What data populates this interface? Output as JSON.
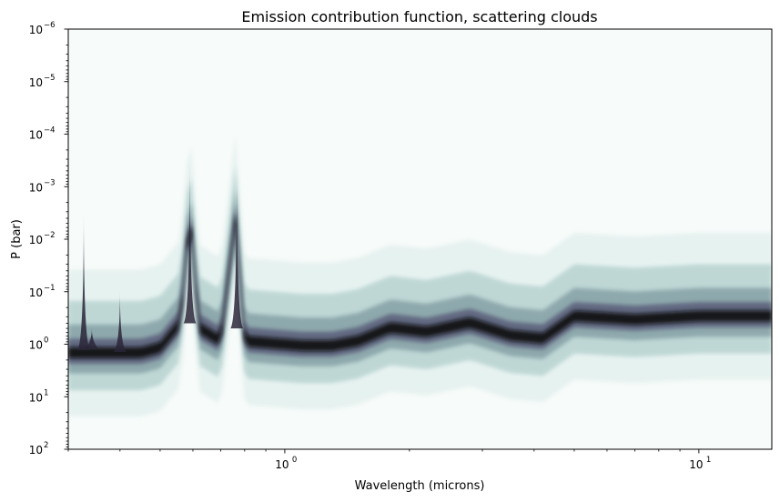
{
  "chart_data": {
    "type": "heatmap",
    "title": "Emission contribution function, scattering clouds",
    "xlabel": "Wavelength (microns)",
    "ylabel": "P (bar)",
    "xscale": "log",
    "yscale": "log",
    "yaxis_inverted": true,
    "xlim": [
      0.3,
      15
    ],
    "ylim": [
      100,
      1e-06
    ],
    "x_major_ticks": [
      {
        "value": 1,
        "base": "10",
        "exp": "0"
      },
      {
        "value": 10,
        "base": "10",
        "exp": "1"
      }
    ],
    "y_major_ticks": [
      {
        "value": 1e-06,
        "base": "10",
        "exp": "−6"
      },
      {
        "value": 1e-05,
        "base": "10",
        "exp": "−5"
      },
      {
        "value": 0.0001,
        "base": "10",
        "exp": "−4"
      },
      {
        "value": 0.001,
        "base": "10",
        "exp": "−3"
      },
      {
        "value": 0.01,
        "base": "10",
        "exp": "−2"
      },
      {
        "value": 0.1,
        "base": "10",
        "exp": "−1"
      },
      {
        "value": 1,
        "base": "10",
        "exp": "0"
      },
      {
        "value": 10,
        "base": "10",
        "exp": "1"
      },
      {
        "value": 100,
        "base": "10",
        "exp": "2"
      }
    ],
    "colormap": "bone_r",
    "colormap_colors": [
      "#f7fbfa",
      "#d9ebe8",
      "#a9cac6",
      "#7d9aa0",
      "#5a5e7a",
      "#2a2638",
      "#0a0a10"
    ],
    "peak_pressure_profile": [
      {
        "wavelength": 0.3,
        "pressure": 1.5
      },
      {
        "wavelength": 0.45,
        "pressure": 1.5
      },
      {
        "wavelength": 0.5,
        "pressure": 1.2
      },
      {
        "wavelength": 0.56,
        "pressure": 0.4
      },
      {
        "wavelength": 0.59,
        "pressure": 0.003
      },
      {
        "wavelength": 0.62,
        "pressure": 0.5
      },
      {
        "wavelength": 0.7,
        "pressure": 0.9
      },
      {
        "wavelength": 0.76,
        "pressure": 0.004
      },
      {
        "wavelength": 0.8,
        "pressure": 0.9
      },
      {
        "wavelength": 1.1,
        "pressure": 1.1
      },
      {
        "wavelength": 1.3,
        "pressure": 1.1
      },
      {
        "wavelength": 1.5,
        "pressure": 0.9
      },
      {
        "wavelength": 1.8,
        "pressure": 0.5
      },
      {
        "wavelength": 2.2,
        "pressure": 0.6
      },
      {
        "wavelength": 2.8,
        "pressure": 0.4
      },
      {
        "wavelength": 3.5,
        "pressure": 0.7
      },
      {
        "wavelength": 4.2,
        "pressure": 0.8
      },
      {
        "wavelength": 5,
        "pressure": 0.3
      },
      {
        "wavelength": 7,
        "pressure": 0.35
      },
      {
        "wavelength": 10,
        "pressure": 0.3
      },
      {
        "wavelength": 15,
        "pressure": 0.3
      }
    ],
    "spikes": [
      {
        "wavelength": 0.327,
        "top_pressure": 0.003,
        "base_pressure": 1.3
      },
      {
        "wavelength": 0.342,
        "top_pressure": 0.5,
        "base_pressure": 1.2
      },
      {
        "wavelength": 0.4,
        "top_pressure": 0.1,
        "base_pressure": 1.4
      },
      {
        "wavelength": 0.59,
        "top_pressure": 0.0003,
        "base_pressure": 0.4
      },
      {
        "wavelength": 0.766,
        "top_pressure": 0.0005,
        "base_pressure": 0.5
      }
    ],
    "grid": false,
    "legend": "none"
  }
}
